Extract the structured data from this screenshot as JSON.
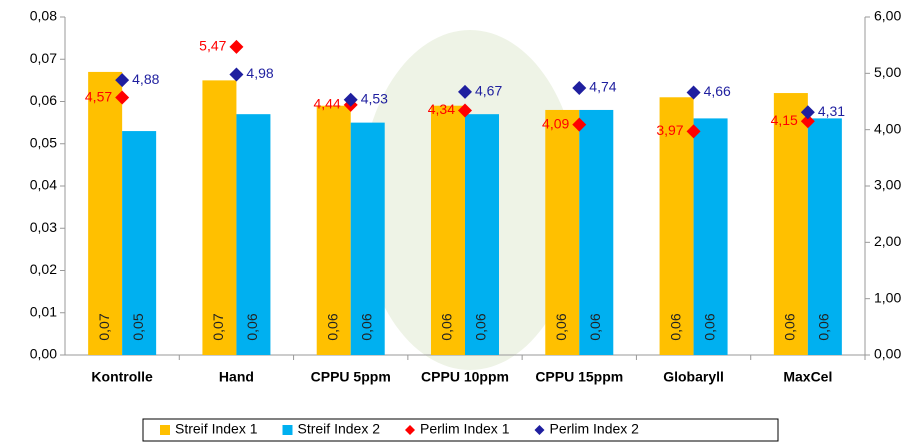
{
  "chart_data": {
    "type": "bar",
    "categories": [
      "Kontrolle",
      "Hand",
      "CPPU 5ppm",
      "CPPU 10ppm",
      "CPPU 15ppm",
      "Globaryll",
      "MaxCel"
    ],
    "series": [
      {
        "name": "Streif Index 1",
        "color": "#FFC000",
        "values": [
          0.067,
          0.065,
          0.059,
          0.059,
          0.058,
          0.061,
          0.062
        ],
        "value_labels": [
          "0,07",
          "0,07",
          "0,06",
          "0,06",
          "0,06",
          "0,06",
          "0,06"
        ]
      },
      {
        "name": "Streif Index 2",
        "color": "#00B0F0",
        "values": [
          0.053,
          0.057,
          0.055,
          0.057,
          0.058,
          0.056,
          0.056
        ],
        "value_labels": [
          "0,05",
          "0,06",
          "0,06",
          "0,06",
          "0,06",
          "0,06",
          "0,06"
        ]
      },
      {
        "name": "Perlim Index 1",
        "color": "#FF0000",
        "axis": "y2",
        "marker": "diamond",
        "values": [
          4.57,
          5.47,
          4.44,
          4.34,
          4.09,
          3.97,
          4.15
        ],
        "value_labels": [
          "4,57",
          "5,47",
          "4,44",
          "4,34",
          "4,09",
          "3,97",
          "4,15"
        ]
      },
      {
        "name": "Perlim Index 2",
        "color": "#1F1F9F",
        "axis": "y2",
        "marker": "diamond",
        "values": [
          4.88,
          4.98,
          4.53,
          4.67,
          4.74,
          4.66,
          4.31
        ],
        "value_labels": [
          "4,88",
          "4,98",
          "4,53",
          "4,67",
          "4,74",
          "4,66",
          "4,31"
        ]
      }
    ],
    "ylim": [
      0,
      0.08
    ],
    "yticks": [
      {
        "value": 0,
        "label": "0,00"
      },
      {
        "value": 0.01,
        "label": "0,01"
      },
      {
        "value": 0.02,
        "label": "0,02"
      },
      {
        "value": 0.03,
        "label": "0,03"
      },
      {
        "value": 0.04,
        "label": "0,04"
      },
      {
        "value": 0.05,
        "label": "0,05"
      },
      {
        "value": 0.06,
        "label": "0,06"
      },
      {
        "value": 0.07,
        "label": "0,07"
      },
      {
        "value": 0.08,
        "label": "0,08"
      }
    ],
    "y2lim": [
      0,
      6
    ],
    "y2ticks": [
      {
        "value": 0,
        "label": "0,00"
      },
      {
        "value": 1,
        "label": "1,00"
      },
      {
        "value": 2,
        "label": "2,00"
      },
      {
        "value": 3,
        "label": "3,00"
      },
      {
        "value": 4,
        "label": "4,00"
      },
      {
        "value": 5,
        "label": "5,00"
      },
      {
        "value": 6,
        "label": "6,00"
      }
    ],
    "grid": false,
    "legend": "bottom"
  }
}
